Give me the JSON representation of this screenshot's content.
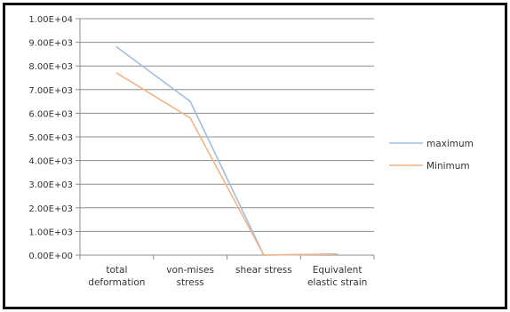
{
  "chart_data": {
    "type": "line",
    "categories": [
      "total\ndeformation",
      "von-mises\nstress",
      "shear stress",
      "Equivalent\nelastic strain"
    ],
    "series": [
      {
        "name": "maximum",
        "values": [
          8800,
          6500,
          0,
          50
        ],
        "color": "#9fbde0"
      },
      {
        "name": "Minimum",
        "values": [
          7700,
          5800,
          0,
          40
        ],
        "color": "#f2b487"
      }
    ],
    "ylim": [
      0,
      10000
    ],
    "yticks": [
      "0.00E+00",
      "1.00E+03",
      "2.00E+03",
      "3.00E+03",
      "4.00E+03",
      "5.00E+03",
      "6.00E+03",
      "7.00E+03",
      "8.00E+03",
      "9.00E+03",
      "1.00E+04"
    ],
    "ytick_values": [
      0,
      1000,
      2000,
      3000,
      4000,
      5000,
      6000,
      7000,
      8000,
      9000,
      10000
    ],
    "grid": true,
    "legend_position": "right",
    "gridline_color": "#8c8c8c",
    "axis_color": "#8c8c8c",
    "text_color": "#333333"
  }
}
